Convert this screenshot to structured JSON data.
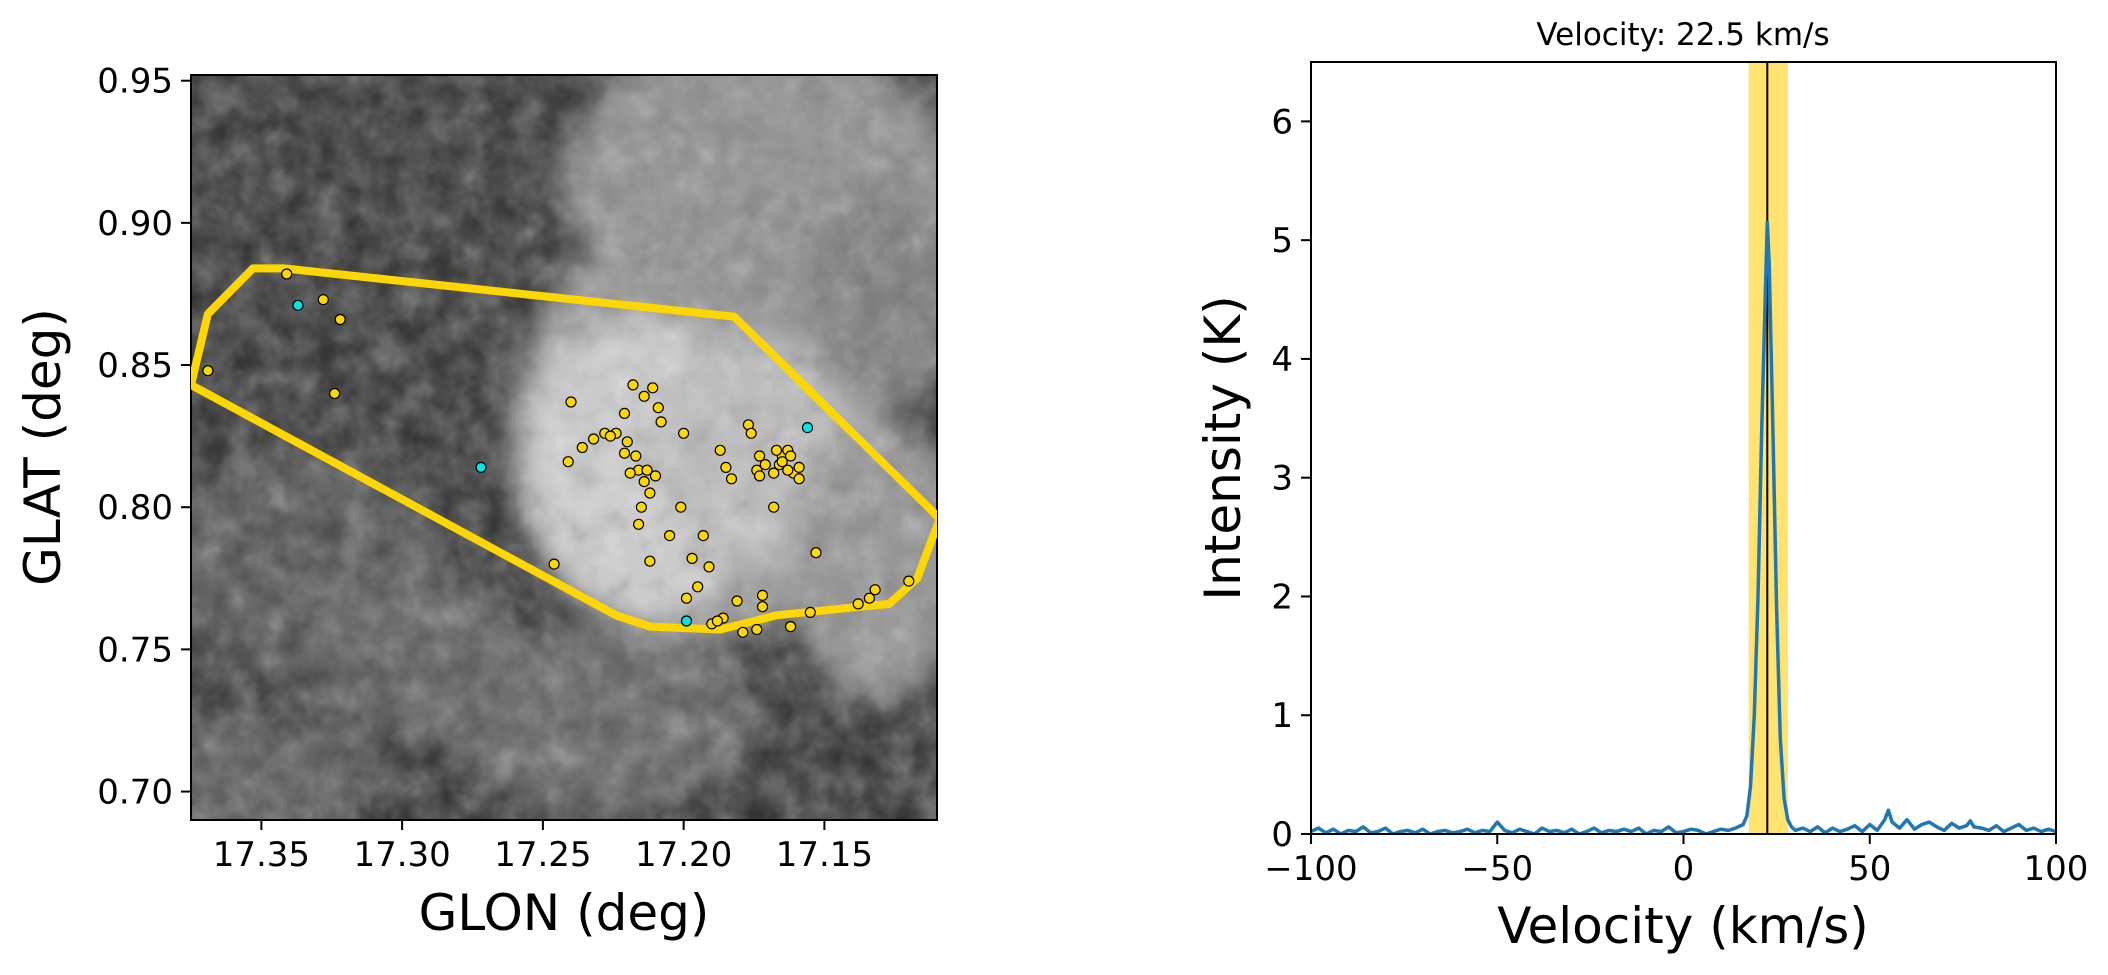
{
  "chart_data": [
    {
      "type": "scatter",
      "panel": "map",
      "background": "grayscale intensity map",
      "xlabel": "GLON (deg)",
      "ylabel": "GLAT (deg)",
      "xlim": [
        17.375,
        17.11
      ],
      "ylim": [
        0.69,
        0.952
      ],
      "xticks": [
        17.35,
        17.3,
        17.25,
        17.2,
        17.15
      ],
      "xtick_labels": [
        "17.35",
        "17.30",
        "17.25",
        "17.20",
        "17.15"
      ],
      "yticks": [
        0.7,
        0.75,
        0.8,
        0.85,
        0.9,
        0.95
      ],
      "ytick_labels": [
        "0.70",
        "0.75",
        "0.80",
        "0.85",
        "0.90",
        "0.95"
      ],
      "outline": {
        "color": "#FFD700",
        "lon": [
          17.375,
          17.369,
          17.353,
          17.342,
          17.182,
          17.109,
          17.117,
          17.127,
          17.137,
          17.167,
          17.187,
          17.212,
          17.224,
          17.375
        ],
        "lat": [
          0.843,
          0.868,
          0.884,
          0.884,
          0.867,
          0.796,
          0.775,
          0.766,
          0.765,
          0.762,
          0.757,
          0.758,
          0.762,
          0.843
        ]
      },
      "yellow_points": {
        "color": "#FFD700",
        "lon": [
          17.369,
          17.341,
          17.328,
          17.322,
          17.324,
          17.24,
          17.236,
          17.241,
          17.246,
          17.218,
          17.214,
          17.221,
          17.209,
          17.211,
          17.232,
          17.228,
          17.224,
          17.226,
          17.22,
          17.221,
          17.217,
          17.216,
          17.219,
          17.214,
          17.213,
          17.21,
          17.212,
          17.215,
          17.216,
          17.212,
          17.205,
          17.208,
          17.2,
          17.201,
          17.197,
          17.193,
          17.195,
          17.191,
          17.187,
          17.185,
          17.183,
          17.199,
          17.177,
          17.176,
          17.173,
          17.171,
          17.174,
          17.173,
          17.168,
          17.166,
          17.165,
          17.165,
          17.167,
          17.163,
          17.162,
          17.161,
          17.163,
          17.159,
          17.159,
          17.168,
          17.172,
          17.172,
          17.181,
          17.186,
          17.19,
          17.188,
          17.179,
          17.174,
          17.162,
          17.153,
          17.155,
          17.138,
          17.132,
          17.134,
          17.12
        ],
        "lat": [
          0.848,
          0.882,
          0.873,
          0.866,
          0.84,
          0.837,
          0.821,
          0.816,
          0.78,
          0.843,
          0.839,
          0.833,
          0.835,
          0.842,
          0.824,
          0.826,
          0.826,
          0.825,
          0.823,
          0.819,
          0.818,
          0.813,
          0.812,
          0.809,
          0.813,
          0.811,
          0.805,
          0.8,
          0.794,
          0.781,
          0.79,
          0.83,
          0.826,
          0.8,
          0.782,
          0.79,
          0.772,
          0.779,
          0.82,
          0.814,
          0.81,
          0.768,
          0.829,
          0.826,
          0.818,
          0.815,
          0.813,
          0.811,
          0.812,
          0.815,
          0.818,
          0.816,
          0.82,
          0.82,
          0.818,
          0.812,
          0.813,
          0.814,
          0.81,
          0.8,
          0.769,
          0.765,
          0.767,
          0.761,
          0.759,
          0.76,
          0.756,
          0.757,
          0.758,
          0.784,
          0.763,
          0.766,
          0.771,
          0.768,
          0.774
        ]
      },
      "cyan_points": {
        "color": "#00E5E5",
        "lon": [
          17.337,
          17.272,
          17.156,
          17.199
        ],
        "lat": [
          0.871,
          0.814,
          0.828,
          0.76
        ]
      }
    },
    {
      "type": "line",
      "panel": "spectrum",
      "title": "Velocity: 22.5 km/s",
      "xlabel": "Velocity (km/s)",
      "ylabel": "Intensity (K)",
      "xlim": [
        -100,
        100
      ],
      "ylim": [
        0,
        6.5
      ],
      "xticks": [
        -100,
        -50,
        0,
        50,
        100
      ],
      "xtick_labels": [
        "−100",
        "−50",
        "0",
        "50",
        "100"
      ],
      "yticks": [
        0,
        1,
        2,
        3,
        4,
        5,
        6
      ],
      "ytick_labels": [
        "0",
        "1",
        "2",
        "3",
        "4",
        "5",
        "6"
      ],
      "marker_velocity": 22.5,
      "highlight_range": [
        17.5,
        28
      ],
      "highlight_color": "#FFE36E",
      "series": [
        {
          "name": "spectrum",
          "color": "#1f77b4",
          "x": [
            -100,
            -98,
            -96,
            -94,
            -92,
            -90,
            -88,
            -86,
            -84,
            -82,
            -80,
            -78,
            -76,
            -74,
            -72,
            -70,
            -68,
            -66,
            -64,
            -62,
            -60,
            -58,
            -56,
            -54,
            -52,
            -50,
            -48,
            -46,
            -44,
            -42,
            -40,
            -38,
            -36,
            -34,
            -32,
            -30,
            -28,
            -26,
            -24,
            -22,
            -20,
            -18,
            -16,
            -14,
            -12,
            -10,
            -8,
            -6,
            -4,
            -2,
            0,
            2,
            4,
            6,
            8,
            10,
            12,
            14,
            16,
            17,
            18,
            19,
            20,
            21,
            22,
            22.5,
            23,
            24,
            25,
            26,
            27,
            28,
            29,
            30,
            32,
            34,
            36,
            38,
            40,
            42,
            44,
            46,
            48,
            50,
            52,
            54,
            55,
            56,
            58,
            60,
            62,
            64,
            66,
            68,
            70,
            72,
            74,
            76,
            77,
            78,
            80,
            82,
            84,
            86,
            88,
            90,
            92,
            94,
            96,
            98,
            100
          ],
          "y": [
            0.02,
            0.05,
            0.01,
            0.04,
            0.0,
            0.03,
            0.02,
            0.06,
            0.01,
            0.02,
            0.05,
            0.0,
            0.02,
            0.03,
            0.01,
            0.04,
            0.0,
            0.02,
            0.03,
            0.01,
            0.02,
            0.04,
            0.01,
            0.03,
            0.02,
            0.1,
            0.03,
            0.01,
            0.04,
            0.02,
            0.0,
            0.05,
            0.02,
            0.03,
            0.01,
            0.04,
            0.0,
            0.02,
            0.05,
            0.01,
            0.03,
            0.02,
            0.04,
            0.02,
            0.05,
            0.0,
            0.03,
            0.02,
            0.06,
            0.01,
            0.02,
            0.04,
            0.03,
            0.0,
            0.02,
            0.04,
            0.03,
            0.05,
            0.08,
            0.15,
            0.4,
            1.0,
            2.0,
            3.4,
            4.6,
            5.15,
            4.8,
            3.4,
            1.9,
            0.8,
            0.3,
            0.12,
            0.06,
            0.03,
            0.05,
            0.02,
            0.06,
            0.01,
            0.05,
            0.02,
            0.04,
            0.07,
            0.02,
            0.08,
            0.03,
            0.12,
            0.2,
            0.1,
            0.05,
            0.12,
            0.04,
            0.08,
            0.1,
            0.06,
            0.03,
            0.09,
            0.05,
            0.07,
            0.11,
            0.06,
            0.05,
            0.03,
            0.07,
            0.02,
            0.05,
            0.08,
            0.03,
            0.05,
            0.02,
            0.04,
            0.02
          ]
        }
      ]
    }
  ]
}
